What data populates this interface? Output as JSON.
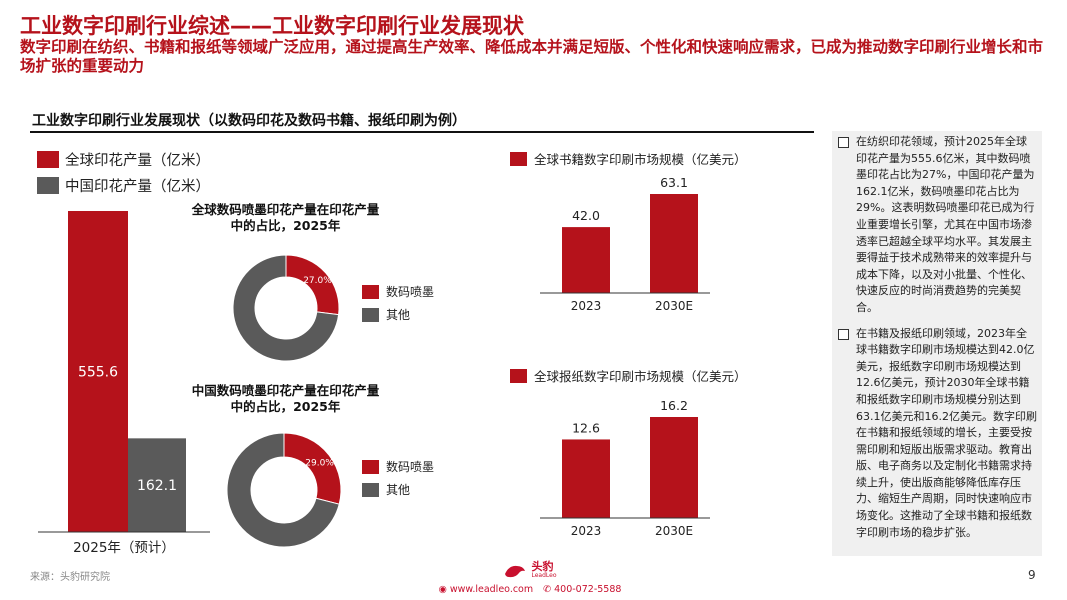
{
  "header": {
    "title": "工业数字印刷行业综述——工业数字印刷行业发展现状",
    "subtitle": "数字印刷在纺织、书籍和报纸等领域广泛应用，通过提高生产效率、降低成本并满足短版、个性化和快速响应需求，已成为推动数字印刷行业增长和市场扩张的重要动力",
    "section_heading": "工业数字印刷行业发展现状（以数码印花及数码书籍、报纸印刷为例）"
  },
  "colors": {
    "accent": "#b5121b",
    "gray": "#5a5a5a",
    "panel_bg": "#f0f0f0"
  },
  "chart_data": [
    {
      "type": "bar",
      "categories": [
        "2025年（预计）"
      ],
      "series": [
        {
          "name": "全球印花产量（亿米）",
          "values": [
            555.6
          ],
          "color": "#b5121b"
        },
        {
          "name": "中国印花产量（亿米）",
          "values": [
            162.1
          ],
          "color": "#5a5a5a"
        }
      ],
      "ylim": [
        0,
        555.6
      ],
      "value_labels": [
        "555.6",
        "162.1"
      ]
    },
    {
      "type": "pie",
      "title": "全球数码喷墨印花产量在印花产量中的占比，2025年",
      "labels": [
        "数码喷墨",
        "其他"
      ],
      "values": [
        27.0,
        73.0
      ],
      "slice_label": "27.0%",
      "colors": [
        "#b5121b",
        "#5a5a5a"
      ]
    },
    {
      "type": "pie",
      "title": "中国数码喷墨印花产量在印花产量中的占比，2025年",
      "labels": [
        "数码喷墨",
        "其他"
      ],
      "values": [
        29.0,
        71.0
      ],
      "slice_label": "29.0%",
      "colors": [
        "#b5121b",
        "#5a5a5a"
      ]
    },
    {
      "type": "bar",
      "categories": [
        "2023",
        "2030E"
      ],
      "series": [
        {
          "name": "全球书籍数字印刷市场规模（亿美元）",
          "values": [
            42.0,
            63.1
          ]
        }
      ],
      "value_labels": [
        "42.0",
        "63.1"
      ],
      "ylim": [
        0,
        63.1
      ]
    },
    {
      "type": "bar",
      "categories": [
        "2023",
        "2030E"
      ],
      "series": [
        {
          "name": "全球报纸数字印刷市场规模（亿美元）",
          "values": [
            12.6,
            16.2
          ]
        }
      ],
      "value_labels": [
        "12.6",
        "16.2"
      ],
      "ylim": [
        0,
        16.2
      ]
    }
  ],
  "panel": {
    "bullets": [
      "在纺织印花领域，预计2025年全球印花产量为555.6亿米，其中数码喷墨印花占比为27%，中国印花产量为162.1亿米，数码喷墨印花占比为29%。这表明数码喷墨印花已成为行业重要增长引擎，尤其在中国市场渗透率已超越全球平均水平。其发展主要得益于技术成熟带来的效率提升与成本下降，以及对小批量、个性化、快速反应的时尚消费趋势的完美契合。",
      "在书籍及报纸印刷领域，2023年全球书籍数字印刷市场规模达到42.0亿美元，报纸数字印刷市场规模达到12.6亿美元，预计2030年全球书籍和报纸数字印刷市场规模分别达到63.1亿美元和16.2亿美元。数字印刷在书籍和报纸领域的增长，主要受按需印刷和短版出版需求驱动。教育出版、电子商务以及定制化书籍需求持续上升，使出版商能够降低库存压力、缩短生产周期，同时快速响应市场变化。这推动了全球书籍和报纸数字印刷市场的稳步扩张。"
    ]
  },
  "footer": {
    "source": "来源：头豹研究院",
    "logo_text": "头豹",
    "logo_sub": "LeadLeo",
    "website": "www.leadleo.com",
    "phone": "400-072-5588",
    "page_number": "9"
  }
}
